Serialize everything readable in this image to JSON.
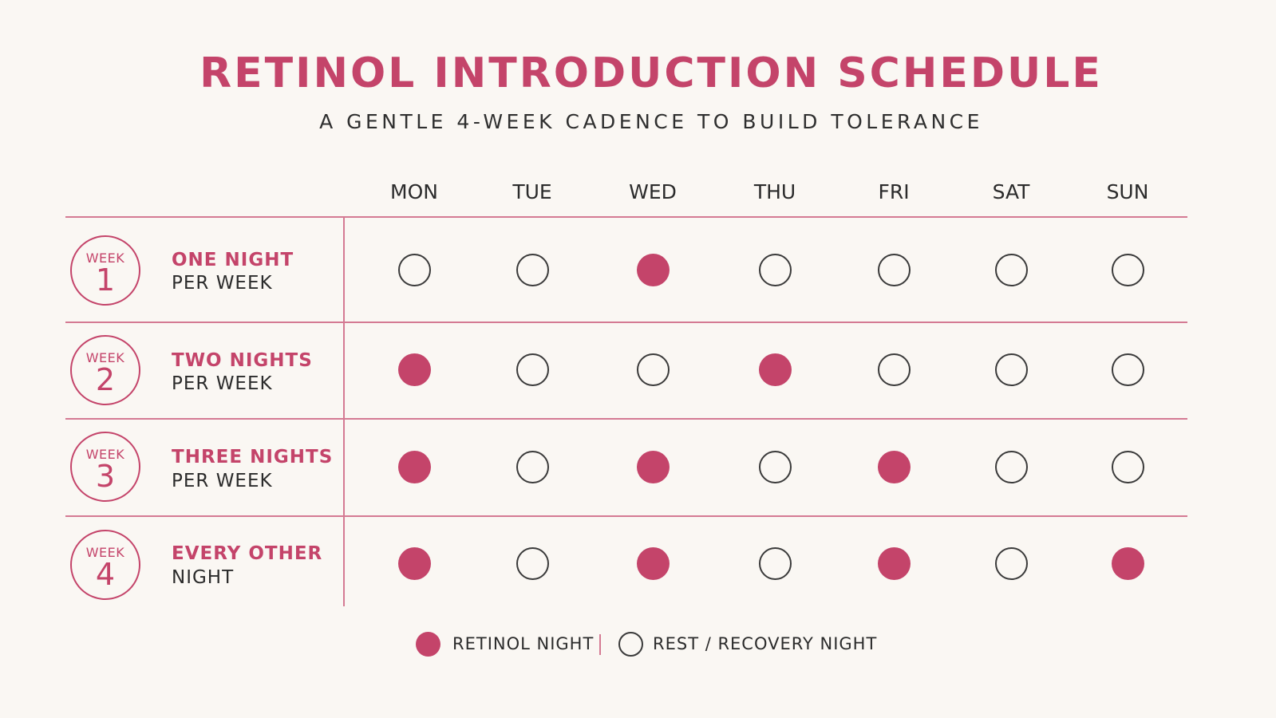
{
  "title": "RETINOL INTRODUCTION SCHEDULE",
  "subtitle": "A GENTLE 4-WEEK CADENCE TO BUILD TOLERANCE",
  "days": [
    "MON",
    "TUE",
    "WED",
    "THU",
    "FRI",
    "SAT",
    "SUN"
  ],
  "weeks": [
    {
      "badge_word": "WEEK",
      "number": "1",
      "title": "ONE NIGHT",
      "subtitle": "PER WEEK",
      "nights": [
        0,
        0,
        1,
        0,
        0,
        0,
        0
      ]
    },
    {
      "badge_word": "WEEK",
      "number": "2",
      "title": "TWO NIGHTS",
      "subtitle": "PER WEEK",
      "nights": [
        1,
        0,
        0,
        1,
        0,
        0,
        0
      ]
    },
    {
      "badge_word": "WEEK",
      "number": "3",
      "title": "THREE NIGHTS",
      "subtitle": "PER WEEK",
      "nights": [
        1,
        0,
        1,
        0,
        1,
        0,
        0
      ]
    },
    {
      "badge_word": "WEEK",
      "number": "4",
      "title": "EVERY OTHER",
      "subtitle": "NIGHT",
      "nights": [
        1,
        0,
        1,
        0,
        1,
        0,
        1
      ]
    }
  ],
  "legend": {
    "retinol_label": "RETINOL NIGHT",
    "rest_label": "REST / RECOVERY NIGHT"
  },
  "colors": {
    "accent": "#c4446a",
    "rule": "#d47a93",
    "background": "#faf7f3",
    "text": "#2b2b2b"
  }
}
